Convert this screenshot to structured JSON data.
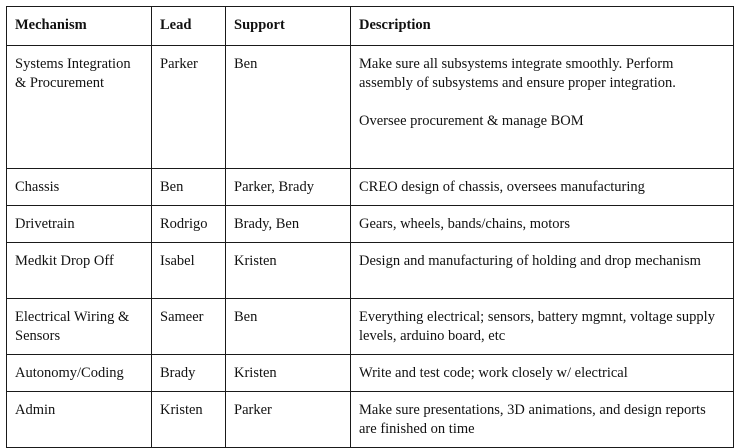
{
  "table": {
    "headers": [
      "Mechanism",
      "Lead",
      "Support",
      "Description"
    ],
    "rows": [
      {
        "mechanism": "Systems Integration & Procurement",
        "lead": "Parker",
        "support": "Ben",
        "description_1": "Make sure all subsystems integrate smoothly. Perform assembly of subsystems and ensure proper integration.",
        "description_2": "Oversee procurement & manage BOM"
      },
      {
        "mechanism": "Chassis",
        "lead": "Ben",
        "support": "Parker, Brady",
        "description": "CREO design of chassis, oversees manufacturing"
      },
      {
        "mechanism": "Drivetrain",
        "lead": "Rodrigo",
        "support": "Brady, Ben",
        "description": "Gears, wheels, bands/chains, motors"
      },
      {
        "mechanism": "Medkit Drop Off",
        "lead": "Isabel",
        "support": "Kristen",
        "description": "Design and manufacturing of holding and drop mechanism"
      },
      {
        "mechanism": "Electrical Wiring & Sensors",
        "lead": "Sameer",
        "support": "Ben",
        "description": "Everything electrical; sensors, battery mgmnt, voltage supply levels, arduino board, etc"
      },
      {
        "mechanism": "Autonomy/Coding",
        "lead": "Brady",
        "support": "Kristen",
        "description": "Write and test code; work closely w/ electrical"
      },
      {
        "mechanism": "Admin",
        "lead": "Kristen",
        "support": "Parker",
        "description": "Make sure presentations, 3D animations, and design reports are finished on time"
      }
    ]
  }
}
